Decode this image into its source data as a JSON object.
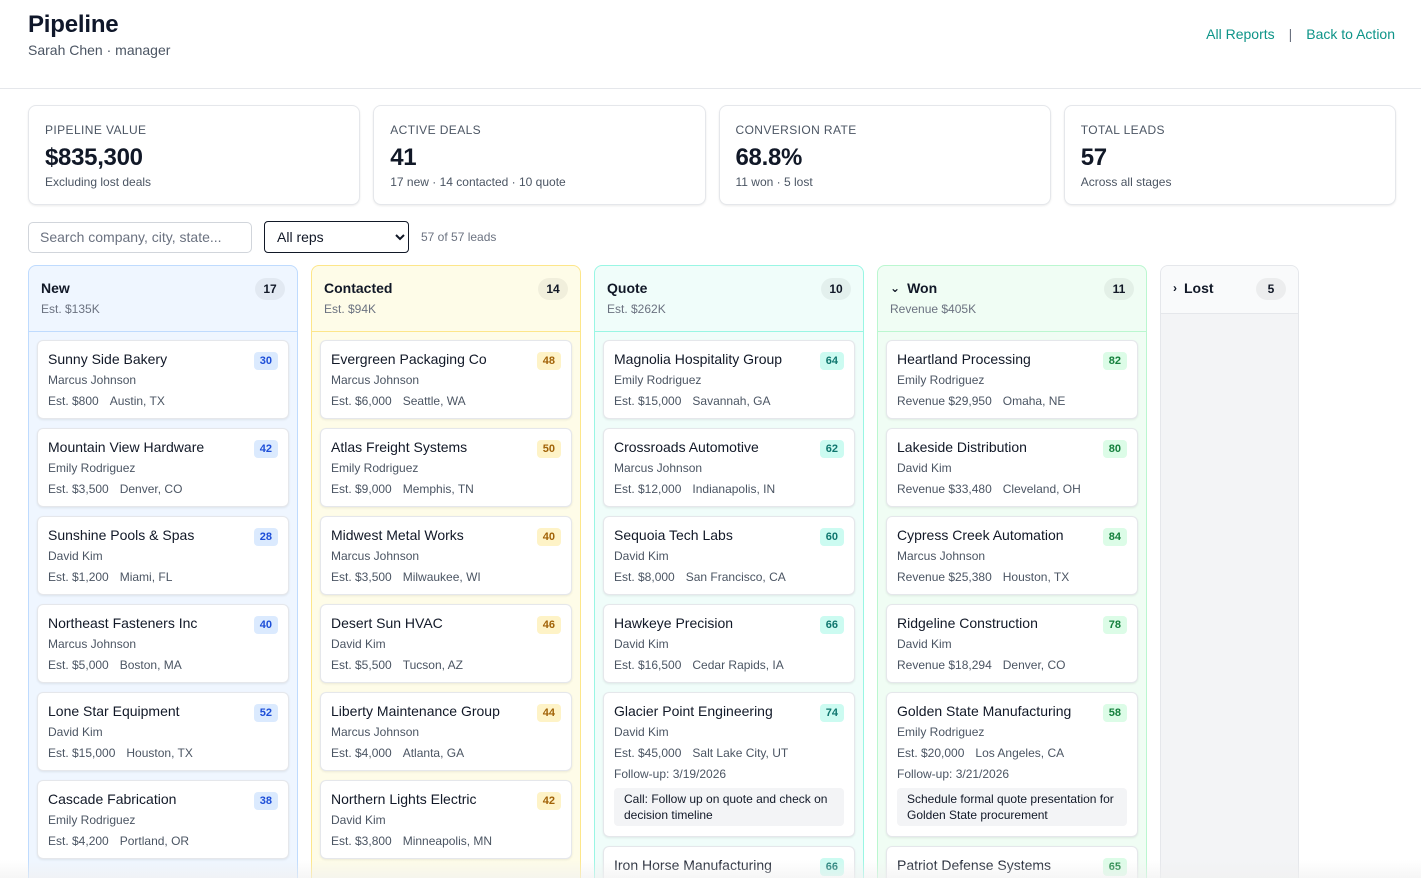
{
  "header": {
    "title": "Pipeline",
    "subtitle": "Sarah Chen · manager",
    "links": {
      "all_reports": "All Reports",
      "separator": "|",
      "back": "Back to Action"
    }
  },
  "stats": [
    {
      "label": "PIPELINE VALUE",
      "value": "$835,300",
      "sub": "Excluding lost deals"
    },
    {
      "label": "ACTIVE DEALS",
      "value": "41",
      "sub": "17 new · 14 contacted · 10 quote"
    },
    {
      "label": "CONVERSION RATE",
      "value": "68.8%",
      "sub": "11 won · 5 lost"
    },
    {
      "label": "TOTAL LEADS",
      "value": "57",
      "sub": "Across all stages"
    }
  ],
  "filters": {
    "search_placeholder": "Search company, city, state...",
    "rep_selected": "All reps",
    "lead_count": "57 of 57 leads"
  },
  "columns": [
    {
      "key": "new",
      "title": "New",
      "count": "17",
      "sub": "Est. $135K",
      "cards": [
        {
          "name": "Sunny Side Bakery",
          "score": "30",
          "rep": "Marcus Johnson",
          "value": "Est. $800",
          "loc": "Austin, TX"
        },
        {
          "name": "Mountain View Hardware",
          "score": "42",
          "rep": "Emily Rodriguez",
          "value": "Est. $3,500",
          "loc": "Denver, CO"
        },
        {
          "name": "Sunshine Pools & Spas",
          "score": "28",
          "rep": "David Kim",
          "value": "Est. $1,200",
          "loc": "Miami, FL"
        },
        {
          "name": "Northeast Fasteners Inc",
          "score": "40",
          "rep": "Marcus Johnson",
          "value": "Est. $5,000",
          "loc": "Boston, MA"
        },
        {
          "name": "Lone Star Equipment",
          "score": "52",
          "rep": "David Kim",
          "value": "Est. $15,000",
          "loc": "Houston, TX"
        },
        {
          "name": "Cascade Fabrication",
          "score": "38",
          "rep": "Emily Rodriguez",
          "value": "Est. $4,200",
          "loc": "Portland, OR"
        }
      ]
    },
    {
      "key": "contacted",
      "title": "Contacted",
      "count": "14",
      "sub": "Est. $94K",
      "cards": [
        {
          "name": "Evergreen Packaging Co",
          "score": "48",
          "rep": "Marcus Johnson",
          "value": "Est. $6,000",
          "loc": "Seattle, WA"
        },
        {
          "name": "Atlas Freight Systems",
          "score": "50",
          "rep": "Emily Rodriguez",
          "value": "Est. $9,000",
          "loc": "Memphis, TN"
        },
        {
          "name": "Midwest Metal Works",
          "score": "40",
          "rep": "Marcus Johnson",
          "value": "Est. $3,500",
          "loc": "Milwaukee, WI"
        },
        {
          "name": "Desert Sun HVAC",
          "score": "46",
          "rep": "David Kim",
          "value": "Est. $5,500",
          "loc": "Tucson, AZ"
        },
        {
          "name": "Liberty Maintenance Group",
          "score": "44",
          "rep": "Marcus Johnson",
          "value": "Est. $4,000",
          "loc": "Atlanta, GA"
        },
        {
          "name": "Northern Lights Electric",
          "score": "42",
          "rep": "David Kim",
          "value": "Est. $3,800",
          "loc": "Minneapolis, MN"
        }
      ]
    },
    {
      "key": "quote",
      "title": "Quote",
      "count": "10",
      "sub": "Est. $262K",
      "cards": [
        {
          "name": "Magnolia Hospitality Group",
          "score": "64",
          "rep": "Emily Rodriguez",
          "value": "Est. $15,000",
          "loc": "Savannah, GA"
        },
        {
          "name": "Crossroads Automotive",
          "score": "62",
          "rep": "Marcus Johnson",
          "value": "Est. $12,000",
          "loc": "Indianapolis, IN"
        },
        {
          "name": "Sequoia Tech Labs",
          "score": "60",
          "rep": "David Kim",
          "value": "Est. $8,000",
          "loc": "San Francisco, CA"
        },
        {
          "name": "Hawkeye Precision",
          "score": "66",
          "rep": "David Kim",
          "value": "Est. $16,500",
          "loc": "Cedar Rapids, IA"
        },
        {
          "name": "Glacier Point Engineering",
          "score": "74",
          "rep": "David Kim",
          "value": "Est. $45,000",
          "loc": "Salt Lake City, UT",
          "follow": "Follow-up: 3/19/2026",
          "note": "Call: Follow up on quote and check on decision timeline"
        },
        {
          "name": "Iron Horse Manufacturing",
          "score": "66",
          "rep": "",
          "value": "",
          "loc": ""
        }
      ]
    },
    {
      "key": "won",
      "title": "Won",
      "count": "11",
      "sub": "Revenue $405K",
      "chevron": "⌄",
      "cards": [
        {
          "name": "Heartland Processing",
          "score": "82",
          "rep": "Emily Rodriguez",
          "value": "Revenue $29,950",
          "loc": "Omaha, NE"
        },
        {
          "name": "Lakeside Distribution",
          "score": "80",
          "rep": "David Kim",
          "value": "Revenue $33,480",
          "loc": "Cleveland, OH"
        },
        {
          "name": "Cypress Creek Automation",
          "score": "84",
          "rep": "Marcus Johnson",
          "value": "Revenue $25,380",
          "loc": "Houston, TX"
        },
        {
          "name": "Ridgeline Construction",
          "score": "78",
          "rep": "David Kim",
          "value": "Revenue $18,294",
          "loc": "Denver, CO"
        },
        {
          "name": "Golden State Manufacturing",
          "score": "58",
          "rep": "Emily Rodriguez",
          "value": "Est. $20,000",
          "loc": "Los Angeles, CA",
          "follow": "Follow-up: 3/21/2026",
          "note": "Schedule formal quote presentation for Golden State procurement"
        },
        {
          "name": "Patriot Defense Systems",
          "score": "65",
          "rep": "",
          "value": "",
          "loc": ""
        }
      ]
    },
    {
      "key": "lost",
      "title": "Lost",
      "count": "5",
      "sub": "",
      "chevron": "›",
      "cards": []
    }
  ],
  "colors": {
    "accent": "#0d9488",
    "new": "#eff6ff",
    "contacted": "#fefce8",
    "quote": "#f0fdfa",
    "won": "#f0fdf4",
    "lost": "#f3f4f6"
  }
}
